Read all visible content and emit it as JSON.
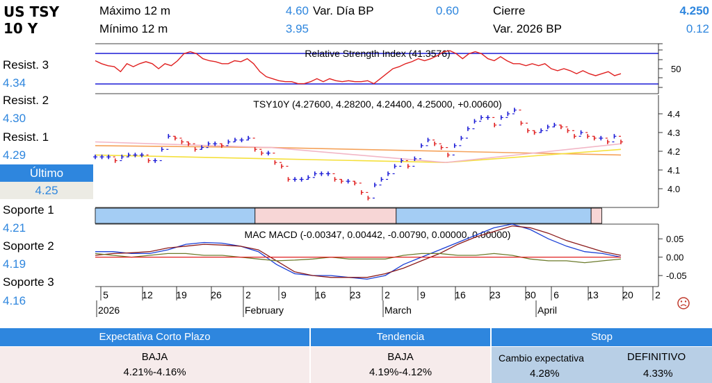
{
  "header": {
    "title1": "US TSY",
    "title2": "10 Y",
    "max_label": "Máximo 12 m",
    "max_value": "4.60",
    "min_label": "Mínimo 12 m",
    "min_value": "3.95",
    "vardia_label": "Var. Día BP",
    "vardia_value": "0.60",
    "cierre_label": "Cierre",
    "cierre_value": "4.250",
    "var2026_label": "Var. 2026 BP",
    "var2026_value": "0.12"
  },
  "levels": [
    {
      "label": "Resist. 3",
      "value": "4.34"
    },
    {
      "label": "Resist. 2",
      "value": "4.30"
    },
    {
      "label": "Resist. 1",
      "value": "4.29"
    },
    {
      "label": "Soporte 1",
      "value": "4.21"
    },
    {
      "label": "Soporte 2",
      "value": "4.19"
    },
    {
      "label": "Soporte 3",
      "value": "4.16"
    }
  ],
  "ultimo": {
    "label": "Último",
    "value": "4.25"
  },
  "chart_data": [
    {
      "type": "line",
      "title": "Relative Strength Index (41.3576)",
      "ylim": [
        25,
        75
      ],
      "y_ticks": [
        "50"
      ],
      "reference_lines": [
        70,
        30
      ],
      "series": [
        {
          "values": [
            58,
            55,
            53,
            52,
            47,
            55,
            52,
            55,
            57,
            55,
            50,
            55,
            53,
            58,
            65,
            67,
            65,
            60,
            58,
            57,
            55,
            55,
            58,
            57,
            60,
            55,
            47,
            42,
            40,
            38,
            37,
            37,
            35,
            35,
            37,
            40,
            37,
            40,
            38,
            37,
            38,
            37,
            37,
            38,
            35,
            40,
            45,
            50,
            52,
            55,
            57,
            60,
            58,
            60,
            63,
            67,
            68,
            65,
            60,
            65,
            67,
            65,
            60,
            58,
            62,
            58,
            55,
            55,
            53,
            55,
            53,
            55,
            50,
            48,
            50,
            48,
            45,
            48,
            45,
            43,
            45,
            47,
            43,
            45
          ]
        }
      ],
      "color": "#e02020"
    },
    {
      "type": "ohlc",
      "title": "TSY10Y (4.27600, 4.28200, 4.24400, 4.25000, +0.00600)",
      "ylim": [
        3.9,
        4.5
      ],
      "y_ticks": [
        "4.4",
        "4.3",
        "4.2",
        "4.1",
        "4.0"
      ],
      "values": [
        4.17,
        4.17,
        4.17,
        4.15,
        4.17,
        4.18,
        4.18,
        4.18,
        4.15,
        4.15,
        4.21,
        4.28,
        4.27,
        4.25,
        4.24,
        4.21,
        4.22,
        4.24,
        4.24,
        4.23,
        4.25,
        4.26,
        4.26,
        4.27,
        4.21,
        4.19,
        4.19,
        4.14,
        4.12,
        4.05,
        4.05,
        4.05,
        4.06,
        4.08,
        4.08,
        4.08,
        4.05,
        4.04,
        4.04,
        4.03,
        3.98,
        3.95,
        4.02,
        4.05,
        4.08,
        4.12,
        4.15,
        4.12,
        4.16,
        4.23,
        4.26,
        4.24,
        4.22,
        4.18,
        4.23,
        4.27,
        4.32,
        4.36,
        4.38,
        4.38,
        4.34,
        4.38,
        4.4,
        4.42,
        4.35,
        4.31,
        4.3,
        4.31,
        4.33,
        4.34,
        4.33,
        4.31,
        4.28,
        4.3,
        4.28,
        4.27,
        4.27,
        4.25,
        4.28,
        4.25
      ],
      "ma_series": [
        {
          "color": "#f5a25a",
          "values": [
            4.23,
            4.22,
            4.2,
            4.18
          ]
        },
        {
          "color": "#f5e03b",
          "values": [
            4.18,
            4.16,
            4.14,
            4.21
          ]
        },
        {
          "color": "#f2b6c6",
          "values": [
            4.25,
            4.22,
            4.14,
            4.24
          ]
        }
      ]
    },
    {
      "type": "band",
      "segments": [
        {
          "color": "#a4cdf4",
          "span": [
            0.0,
            0.3
          ]
        },
        {
          "color": "#f7d6d6",
          "span": [
            0.3,
            0.565
          ]
        },
        {
          "color": "#a4cdf4",
          "span": [
            0.565,
            0.931
          ]
        },
        {
          "color": "#f7d6d6",
          "span": [
            0.931,
            0.951
          ]
        }
      ]
    },
    {
      "type": "line",
      "title": "MAC MACD (-0.00347, 0.00442, -0.00790, 0.00000, 0.00000)",
      "ylim": [
        -0.08,
        0.09
      ],
      "y_ticks": [
        "0.05",
        "0.00",
        "-0.05"
      ],
      "series": [
        {
          "color": "#1a3fd6",
          "values": [
            0.015,
            0.015,
            0.01,
            0.01,
            0.02,
            0.035,
            0.04,
            0.038,
            0.03,
            0.015,
            -0.02,
            -0.045,
            -0.05,
            -0.05,
            -0.055,
            -0.06,
            -0.05,
            -0.02,
            0.0,
            0.02,
            0.04,
            0.06,
            0.08,
            0.09,
            0.075,
            0.05,
            0.03,
            0.015,
            0.01,
            0.0
          ]
        },
        {
          "color": "#8b1a1a",
          "values": [
            0.005,
            0.01,
            0.012,
            0.015,
            0.025,
            0.03,
            0.035,
            0.033,
            0.03,
            0.02,
            -0.01,
            -0.04,
            -0.05,
            -0.055,
            -0.055,
            -0.055,
            -0.045,
            -0.03,
            -0.01,
            0.01,
            0.035,
            0.055,
            0.07,
            0.085,
            0.08,
            0.065,
            0.045,
            0.03,
            0.015,
            0.005
          ]
        },
        {
          "color": "#6b7a2a",
          "values": [
            0.01,
            0.005,
            0.0,
            0.005,
            0.01,
            0.01,
            0.005,
            0.005,
            0.0,
            -0.005,
            -0.01,
            -0.008,
            -0.005,
            0.0,
            -0.005,
            -0.005,
            -0.005,
            0.005,
            0.01,
            0.01,
            0.005,
            0.005,
            0.01,
            0.005,
            -0.005,
            -0.01,
            -0.01,
            -0.015,
            -0.01,
            -0.005
          ]
        },
        {
          "color": "#e02020",
          "values": [
            0,
            0
          ]
        }
      ]
    }
  ],
  "xaxis": {
    "day_ticks": [
      "5",
      "12",
      "19",
      "26",
      "2",
      "9",
      "16",
      "23",
      "2",
      "9",
      "16",
      "23",
      "30",
      "6",
      "13",
      "20",
      "2"
    ],
    "months": [
      "2026",
      "February",
      "March",
      "April"
    ]
  },
  "bottom": {
    "corto_head": "Expectativa Corto Plazo",
    "corto_dir": "BAJA",
    "corto_range": "4.21%-4.16%",
    "tend_head": "Tendencia",
    "tend_dir": "BAJA",
    "tend_range": "4.19%-4.12%",
    "stop_head": "Stop",
    "stop_cambio_label": "Cambio expectativa",
    "stop_cambio_val": "4.28%",
    "stop_def_label": "DEFINITIVO",
    "stop_def_val": "4.33%"
  },
  "sad_icon": "sad-face-icon"
}
